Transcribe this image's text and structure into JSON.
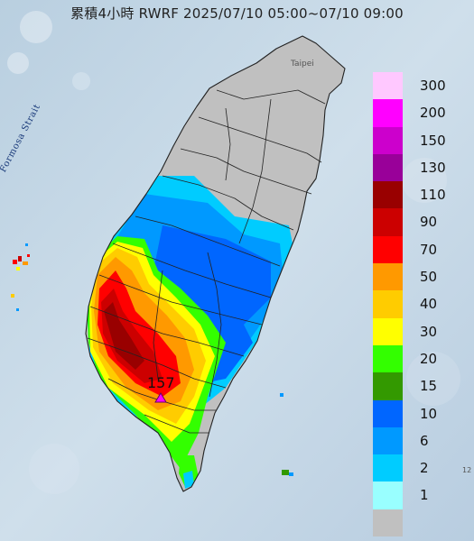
{
  "header": {
    "title": "累積4小時 RWRF 2025/07/10 05:00~07/10 09:00"
  },
  "map": {
    "sea_label": "Formosa Strait",
    "city_label": "Taipei",
    "max_value": "157",
    "corner_label": "12"
  },
  "legend": {
    "items": [
      {
        "label": "300",
        "color": "#ffc8ff"
      },
      {
        "label": "200",
        "color": "#ff00ff"
      },
      {
        "label": "150",
        "color": "#cc00cc"
      },
      {
        "label": "130",
        "color": "#990099"
      },
      {
        "label": "110",
        "color": "#990000"
      },
      {
        "label": "90",
        "color": "#cc0000"
      },
      {
        "label": "70",
        "color": "#ff0000"
      },
      {
        "label": "50",
        "color": "#ff9900"
      },
      {
        "label": "40",
        "color": "#ffcc00"
      },
      {
        "label": "30",
        "color": "#ffff00"
      },
      {
        "label": "20",
        "color": "#33ff00"
      },
      {
        "label": "15",
        "color": "#339900"
      },
      {
        "label": "10",
        "color": "#0066ff"
      },
      {
        "label": "6",
        "color": "#0099ff"
      },
      {
        "label": "2",
        "color": "#00ccff"
      },
      {
        "label": "1",
        "color": "#99ffff"
      },
      {
        "label": "",
        "color": "#c0c0c0"
      }
    ]
  }
}
